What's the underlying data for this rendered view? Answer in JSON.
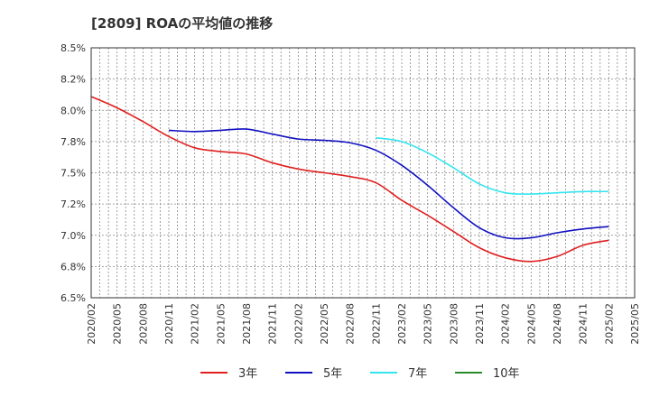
{
  "chart_data": {
    "type": "line",
    "title": "[2809]  ROAの平均値の推移",
    "xlabel": "",
    "ylabel": "",
    "ylim": [
      6.5,
      8.5
    ],
    "y_ticks": [
      6.5,
      6.75,
      7.0,
      7.25,
      7.5,
      7.75,
      8.0,
      8.25,
      8.5
    ],
    "y_tick_labels": [
      "6.5%",
      "6.8%",
      "7.0%",
      "7.2%",
      "7.5%",
      "7.8%",
      "8.0%",
      "8.2%",
      "8.5%"
    ],
    "x_tick_labels": [
      "2020/02",
      "2020/05",
      "2020/08",
      "2020/11",
      "2021/02",
      "2021/05",
      "2021/08",
      "2021/11",
      "2022/02",
      "2022/05",
      "2022/08",
      "2022/11",
      "2023/02",
      "2023/05",
      "2023/08",
      "2023/11",
      "2024/02",
      "2024/05",
      "2024/08",
      "2024/11",
      "2025/02",
      "2025/05"
    ],
    "grid": true,
    "legend_position": "bottom",
    "series": [
      {
        "name": "3年",
        "color": "#e02020",
        "points": [
          [
            "2020/02",
            8.11
          ],
          [
            "2020/05",
            8.02
          ],
          [
            "2020/08",
            7.91
          ],
          [
            "2020/11",
            7.79
          ],
          [
            "2021/02",
            7.7
          ],
          [
            "2021/05",
            7.67
          ],
          [
            "2021/08",
            7.65
          ],
          [
            "2021/11",
            7.58
          ],
          [
            "2022/02",
            7.53
          ],
          [
            "2022/05",
            7.5
          ],
          [
            "2022/08",
            7.47
          ],
          [
            "2022/11",
            7.42
          ],
          [
            "2023/02",
            7.28
          ],
          [
            "2023/05",
            7.16
          ],
          [
            "2023/08",
            7.03
          ],
          [
            "2023/11",
            6.9
          ],
          [
            "2024/02",
            6.82
          ],
          [
            "2024/05",
            6.79
          ],
          [
            "2024/08",
            6.83
          ],
          [
            "2024/11",
            6.92
          ],
          [
            "2025/02",
            6.96
          ]
        ]
      },
      {
        "name": "5年",
        "color": "#1010c0",
        "points": [
          [
            "2020/11",
            7.84
          ],
          [
            "2021/02",
            7.83
          ],
          [
            "2021/05",
            7.84
          ],
          [
            "2021/08",
            7.85
          ],
          [
            "2021/11",
            7.81
          ],
          [
            "2022/02",
            7.77
          ],
          [
            "2022/05",
            7.76
          ],
          [
            "2022/08",
            7.74
          ],
          [
            "2022/11",
            7.68
          ],
          [
            "2023/02",
            7.56
          ],
          [
            "2023/05",
            7.4
          ],
          [
            "2023/08",
            7.22
          ],
          [
            "2023/11",
            7.06
          ],
          [
            "2024/02",
            6.98
          ],
          [
            "2024/05",
            6.98
          ],
          [
            "2024/08",
            7.02
          ],
          [
            "2024/11",
            7.05
          ],
          [
            "2025/02",
            7.07
          ]
        ]
      },
      {
        "name": "7年",
        "color": "#33e5f0",
        "points": [
          [
            "2022/11",
            7.78
          ],
          [
            "2023/02",
            7.75
          ],
          [
            "2023/05",
            7.66
          ],
          [
            "2023/08",
            7.54
          ],
          [
            "2023/11",
            7.41
          ],
          [
            "2024/02",
            7.34
          ],
          [
            "2024/05",
            7.33
          ],
          [
            "2024/08",
            7.34
          ],
          [
            "2024/11",
            7.35
          ],
          [
            "2025/02",
            7.35
          ]
        ]
      },
      {
        "name": "10年",
        "color": "#2a8a2a",
        "points": []
      }
    ]
  }
}
